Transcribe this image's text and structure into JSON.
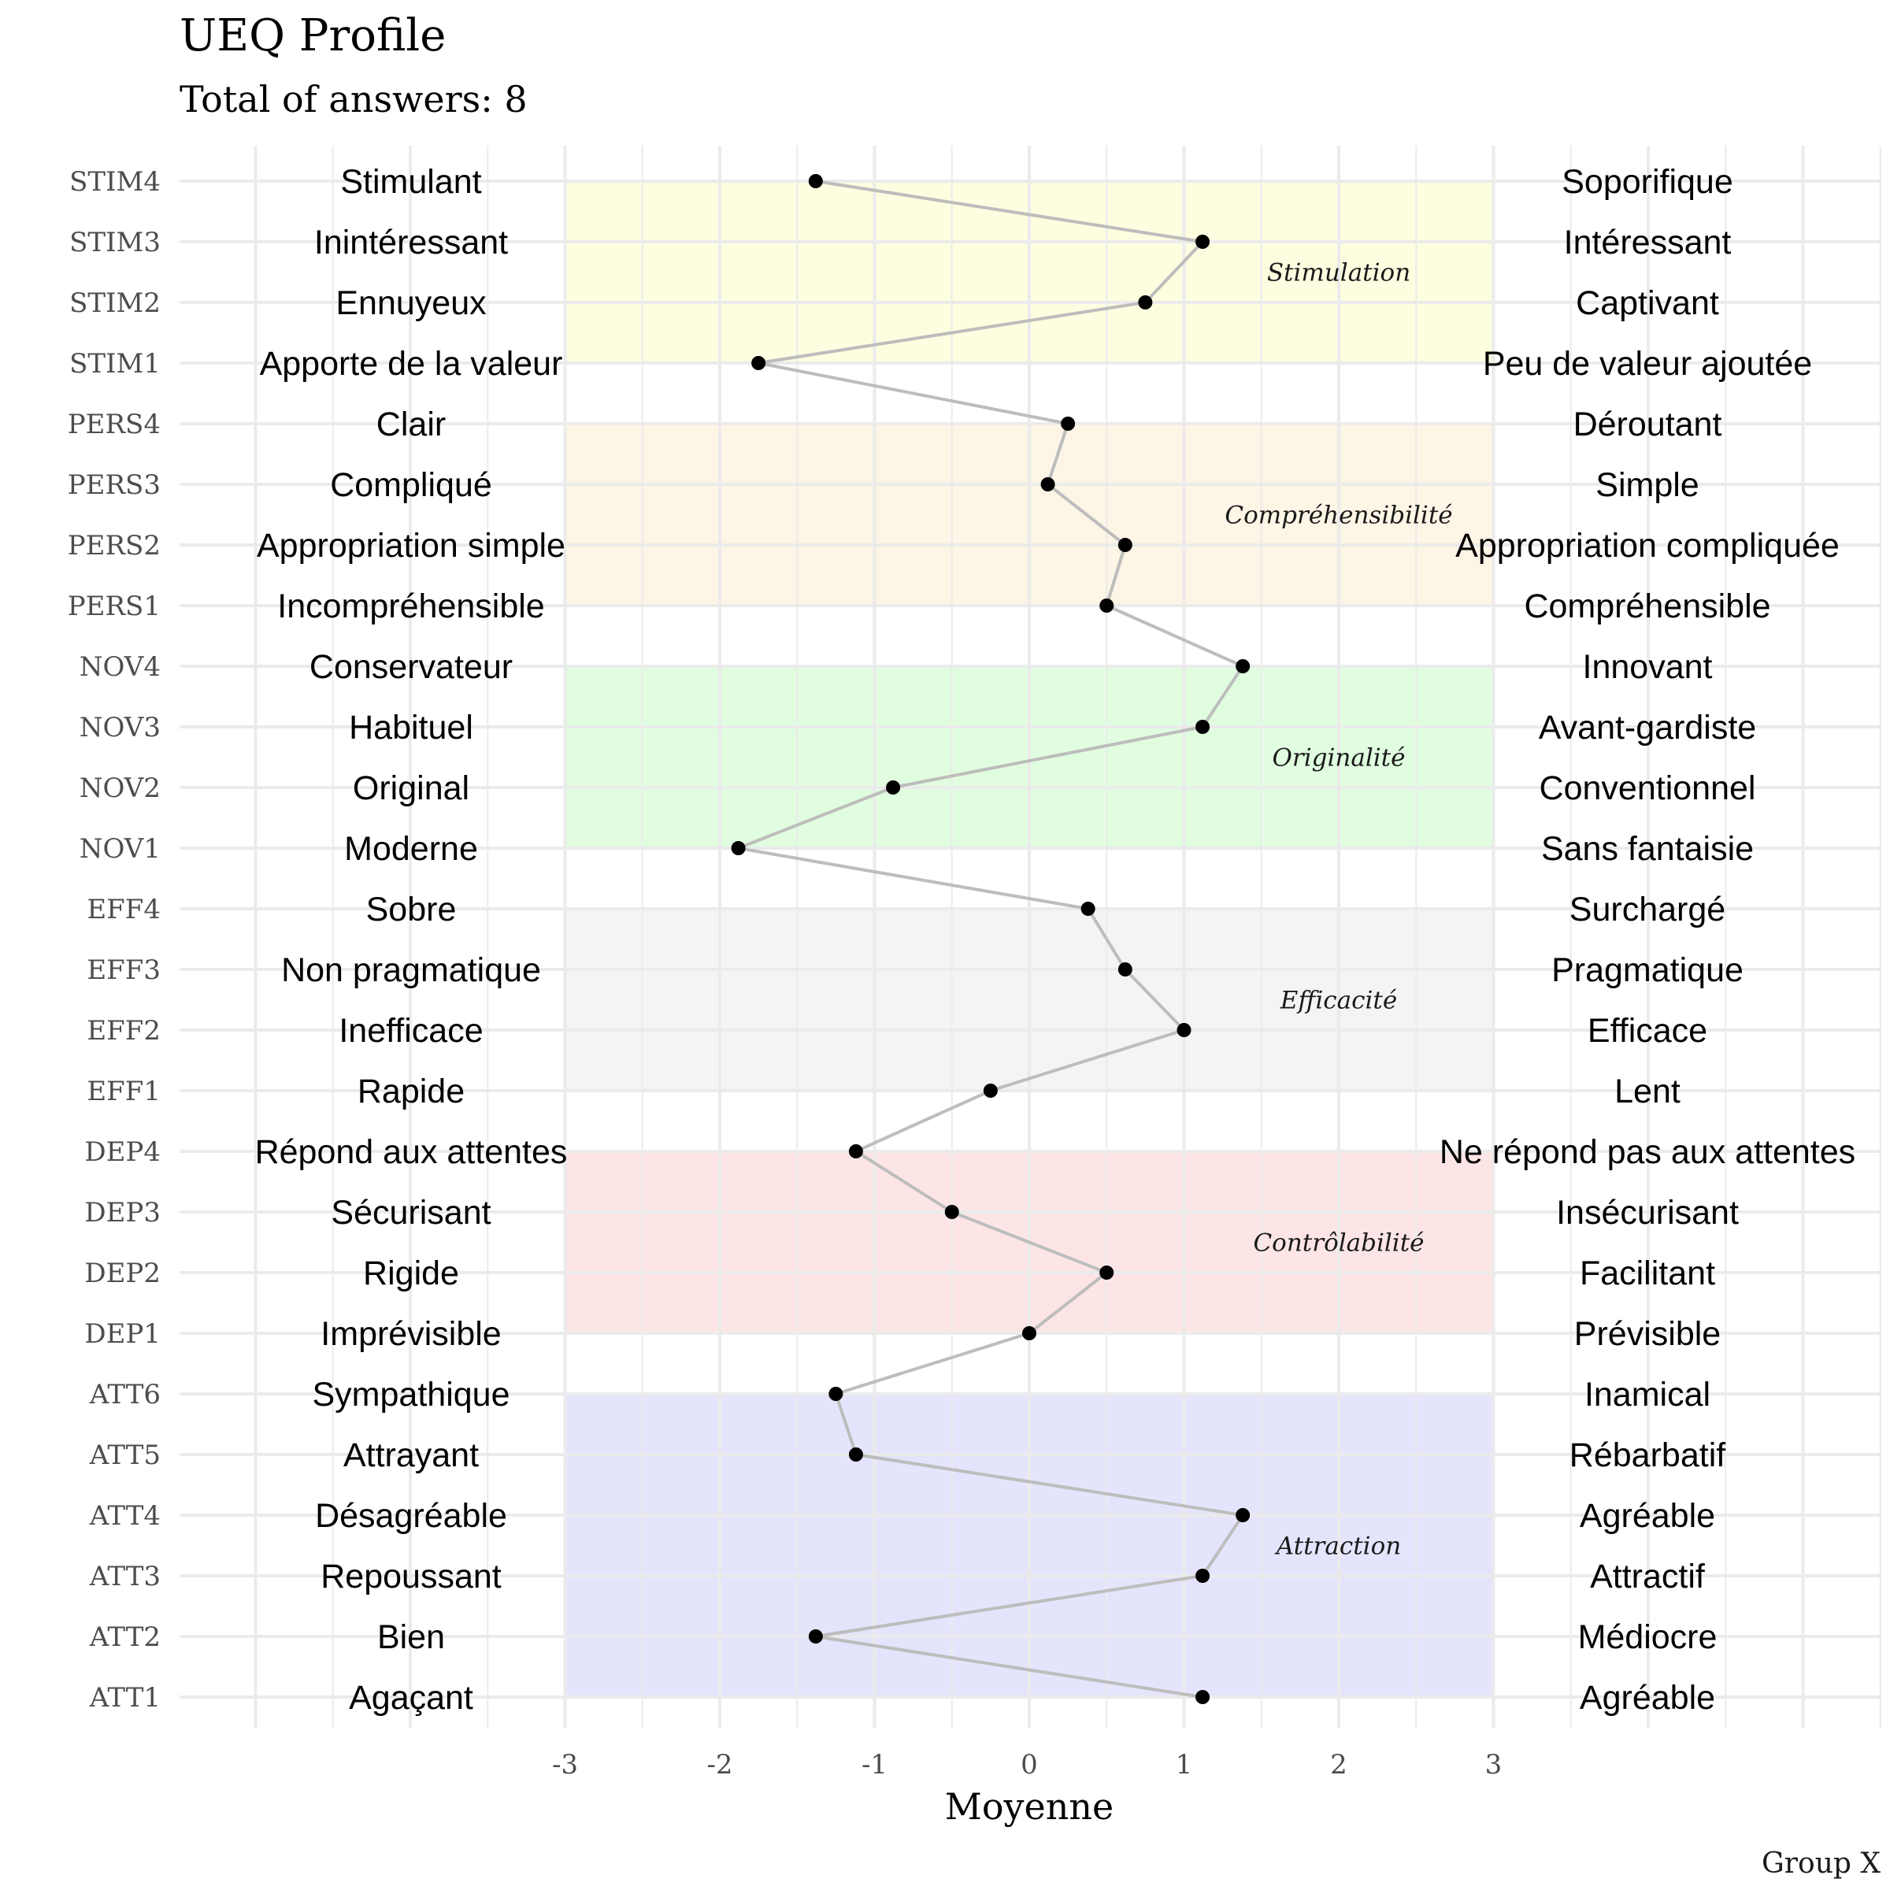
{
  "chart_data": {
    "type": "line",
    "title": "UEQ Profile",
    "subtitle": "Total of answers: 8",
    "xlabel": "Moyenne",
    "caption": "Group X",
    "xlim": [
      -3,
      3
    ],
    "x_ticks": [
      "-3",
      "-2",
      "-1",
      "0",
      "1",
      "2",
      "3"
    ],
    "grid": true,
    "items": [
      {
        "code": "STIM4",
        "left": "Stimulant",
        "right": "Soporifique",
        "value": -1.38
      },
      {
        "code": "STIM3",
        "left": "Inintéressant",
        "right": "Intéressant",
        "value": 1.12
      },
      {
        "code": "STIM2",
        "left": "Ennuyeux",
        "right": "Captivant",
        "value": 0.75
      },
      {
        "code": "STIM1",
        "left": "Apporte de la valeur",
        "right": "Peu de valeur ajoutée",
        "value": -1.75
      },
      {
        "code": "PERS4",
        "left": "Clair",
        "right": "Déroutant",
        "value": 0.25
      },
      {
        "code": "PERS3",
        "left": "Compliqué",
        "right": "Simple",
        "value": 0.12
      },
      {
        "code": "PERS2",
        "left": "Appropriation simple",
        "right": "Appropriation compliquée",
        "value": 0.62
      },
      {
        "code": "PERS1",
        "left": "Incompréhensible",
        "right": "Compréhensible",
        "value": 0.5
      },
      {
        "code": "NOV4",
        "left": "Conservateur",
        "right": "Innovant",
        "value": 1.38
      },
      {
        "code": "NOV3",
        "left": "Habituel",
        "right": "Avant-gardiste",
        "value": 1.12
      },
      {
        "code": "NOV2",
        "left": "Original",
        "right": "Conventionnel",
        "value": -0.88
      },
      {
        "code": "NOV1",
        "left": "Moderne",
        "right": "Sans fantaisie",
        "value": -1.88
      },
      {
        "code": "EFF4",
        "left": "Sobre",
        "right": "Surchargé",
        "value": 0.38
      },
      {
        "code": "EFF3",
        "left": "Non pragmatique",
        "right": "Pragmatique",
        "value": 0.62
      },
      {
        "code": "EFF2",
        "left": "Inefficace",
        "right": "Efficace",
        "value": 1.0
      },
      {
        "code": "EFF1",
        "left": "Rapide",
        "right": "Lent",
        "value": -0.25
      },
      {
        "code": "DEP4",
        "left": "Répond aux attentes",
        "right": "Ne répond pas aux attentes",
        "value": -1.12
      },
      {
        "code": "DEP3",
        "left": "Sécurisant",
        "right": "Insécurisant",
        "value": -0.5
      },
      {
        "code": "DEP2",
        "left": "Rigide",
        "right": "Facilitant",
        "value": 0.5
      },
      {
        "code": "DEP1",
        "left": "Imprévisible",
        "right": "Prévisible",
        "value": 0.0
      },
      {
        "code": "ATT6",
        "left": "Sympathique",
        "right": "Inamical",
        "value": -1.25
      },
      {
        "code": "ATT5",
        "left": "Attrayant",
        "right": "Rébarbatif",
        "value": -1.12
      },
      {
        "code": "ATT4",
        "left": "Désagréable",
        "right": "Agréable",
        "value": 1.38
      },
      {
        "code": "ATT3",
        "left": "Repoussant",
        "right": "Attractif",
        "value": 1.12
      },
      {
        "code": "ATT2",
        "left": "Bien",
        "right": "Médiocre",
        "value": -1.38
      },
      {
        "code": "ATT1",
        "left": "Agaçant",
        "right": "Agréable",
        "value": 1.12
      }
    ],
    "scales": [
      {
        "name": "Stimulation",
        "from": "STIM4",
        "to": "STIM1",
        "color": "#fdfde0"
      },
      {
        "name": "Compréhensibilité",
        "from": "PERS4",
        "to": "PERS1",
        "color": "#fdf5e5"
      },
      {
        "name": "Originalité",
        "from": "NOV4",
        "to": "NOV1",
        "color": "#e0fde0"
      },
      {
        "name": "Efficacité",
        "from": "EFF4",
        "to": "EFF1",
        "color": "#f4f4f4"
      },
      {
        "name": "Contrôlabilité",
        "from": "DEP4",
        "to": "DEP1",
        "color": "#fde5e6"
      },
      {
        "name": "Attraction",
        "from": "ATT6",
        "to": "ATT1",
        "color": "#e4e4fc"
      }
    ],
    "colors": {
      "line": "#bdbdbd",
      "point": "#000000",
      "grid": "#ebebeb"
    }
  }
}
